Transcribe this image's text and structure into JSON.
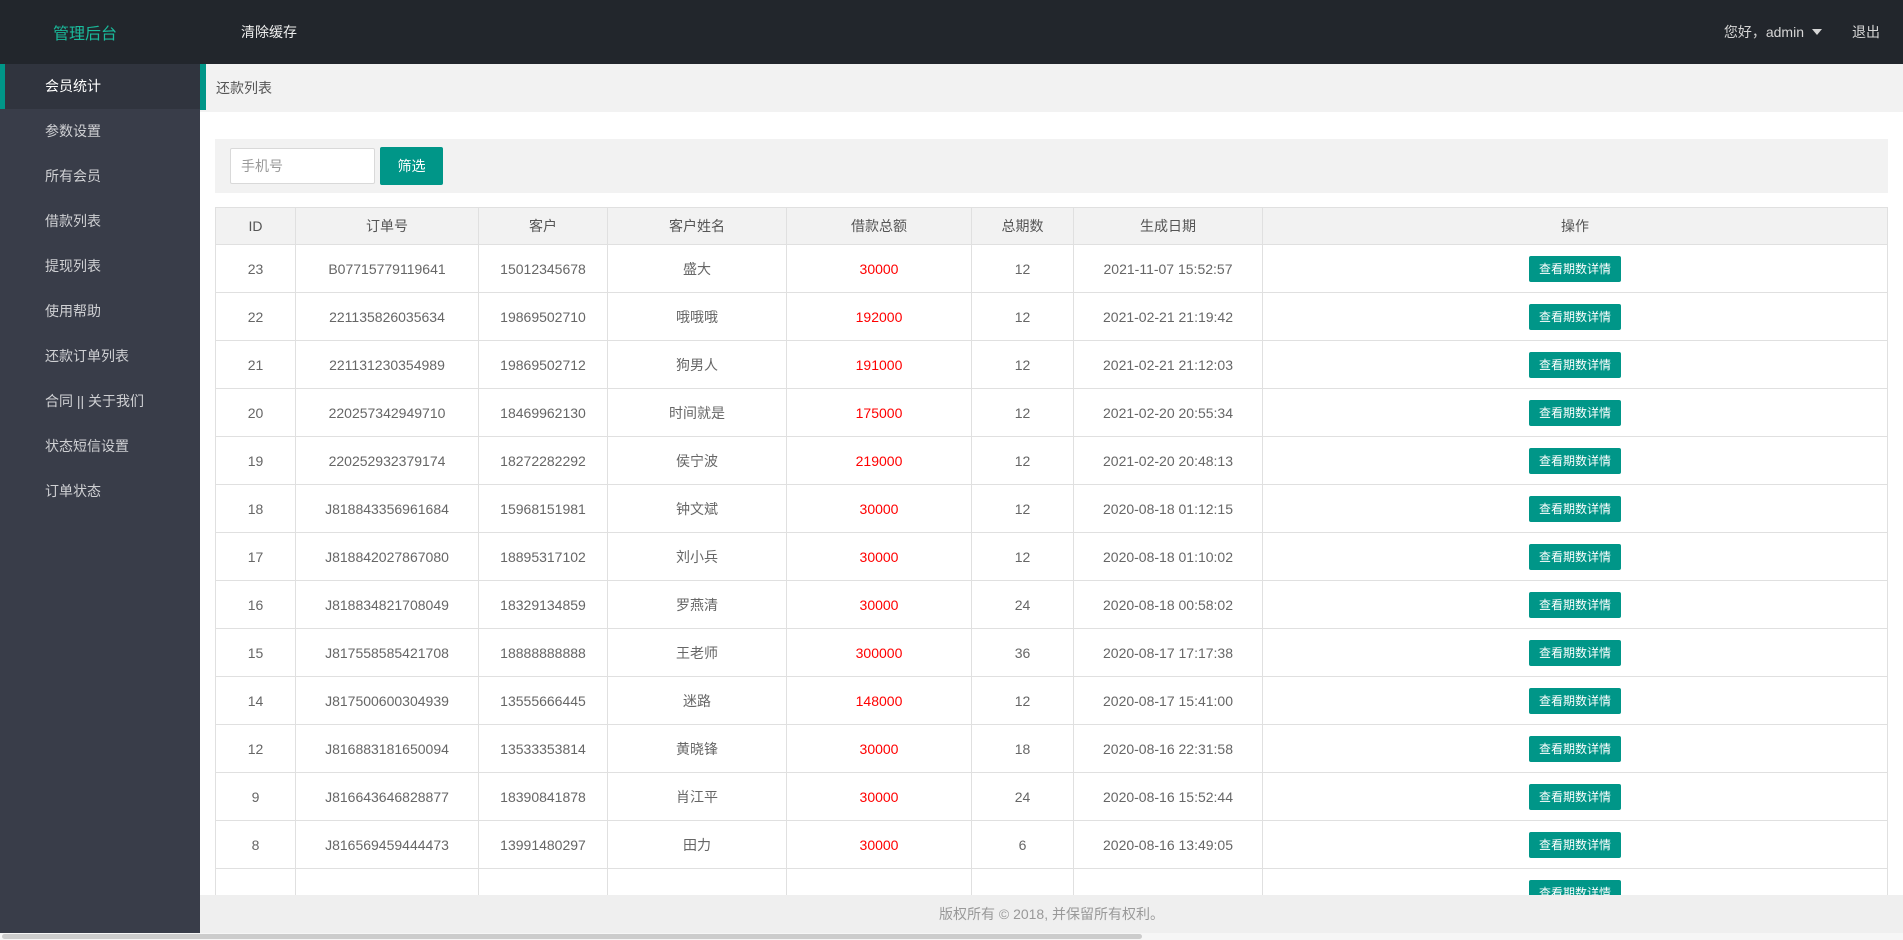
{
  "navbar": {
    "brand": "管理后台",
    "clear_cache": "清除缓存",
    "greeting": "您好，admin",
    "logout": "退出"
  },
  "sidebar": {
    "items": [
      {
        "label": "会员统计",
        "active": true
      },
      {
        "label": "参数设置",
        "active": false
      },
      {
        "label": "所有会员",
        "active": false
      },
      {
        "label": "借款列表",
        "active": false
      },
      {
        "label": "提现列表",
        "active": false
      },
      {
        "label": "使用帮助",
        "active": false
      },
      {
        "label": "还款订单列表",
        "active": false
      },
      {
        "label": "合同 || 关于我们",
        "active": false
      },
      {
        "label": "状态短信设置",
        "active": false
      },
      {
        "label": "订单状态",
        "active": false
      }
    ]
  },
  "breadcrumb": {
    "title": "还款列表"
  },
  "toolbar": {
    "search_placeholder": "手机号",
    "filter_button": "筛选"
  },
  "table": {
    "headers": [
      "ID",
      "订单号",
      "客户",
      "客户姓名",
      "借款总额",
      "总期数",
      "生成日期",
      "操作"
    ],
    "action_label": "查看期数详情",
    "rows": [
      {
        "id": "23",
        "order_no": "B07715779119641",
        "customer": "15012345678",
        "name": "盛大",
        "amount": "30000",
        "periods": "12",
        "created": "2021-11-07 15:52:57"
      },
      {
        "id": "22",
        "order_no": "221135826035634",
        "customer": "19869502710",
        "name": "哦哦哦",
        "amount": "192000",
        "periods": "12",
        "created": "2021-02-21 21:19:42"
      },
      {
        "id": "21",
        "order_no": "221131230354989",
        "customer": "19869502712",
        "name": "狗男人",
        "amount": "191000",
        "periods": "12",
        "created": "2021-02-21 21:12:03"
      },
      {
        "id": "20",
        "order_no": "220257342949710",
        "customer": "18469962130",
        "name": "时间就是",
        "amount": "175000",
        "periods": "12",
        "created": "2021-02-20 20:55:34"
      },
      {
        "id": "19",
        "order_no": "220252932379174",
        "customer": "18272282292",
        "name": "侯宁波",
        "amount": "219000",
        "periods": "12",
        "created": "2021-02-20 20:48:13"
      },
      {
        "id": "18",
        "order_no": "J818843356961684",
        "customer": "15968151981",
        "name": "钟文斌",
        "amount": "30000",
        "periods": "12",
        "created": "2020-08-18 01:12:15"
      },
      {
        "id": "17",
        "order_no": "J818842027867080",
        "customer": "18895317102",
        "name": "刘小兵",
        "amount": "30000",
        "periods": "12",
        "created": "2020-08-18 01:10:02"
      },
      {
        "id": "16",
        "order_no": "J818834821708049",
        "customer": "18329134859",
        "name": "罗燕清",
        "amount": "30000",
        "periods": "24",
        "created": "2020-08-18 00:58:02"
      },
      {
        "id": "15",
        "order_no": "J817558585421708",
        "customer": "18888888888",
        "name": "王老师",
        "amount": "300000",
        "periods": "36",
        "created": "2020-08-17 17:17:38"
      },
      {
        "id": "14",
        "order_no": "J817500600304939",
        "customer": "13555666445",
        "name": "迷路",
        "amount": "148000",
        "periods": "12",
        "created": "2020-08-17 15:41:00"
      },
      {
        "id": "12",
        "order_no": "J816883181650094",
        "customer": "13533353814",
        "name": "黄晓锋",
        "amount": "30000",
        "periods": "18",
        "created": "2020-08-16 22:31:58"
      },
      {
        "id": "9",
        "order_no": "J816643646828877",
        "customer": "18390841878",
        "name": "肖江平",
        "amount": "30000",
        "periods": "24",
        "created": "2020-08-16 15:52:44"
      },
      {
        "id": "8",
        "order_no": "J816569459444473",
        "customer": "13991480297",
        "name": "田力",
        "amount": "30000",
        "periods": "6",
        "created": "2020-08-16 13:49:05"
      }
    ],
    "has_partial_row": true
  },
  "footer": {
    "copyright": "版权所有 © 2018, 并保留所有权利。"
  },
  "colors": {
    "accent": "#009688",
    "brand_green": "#1aba9b",
    "amount_red": "#ff0000"
  }
}
